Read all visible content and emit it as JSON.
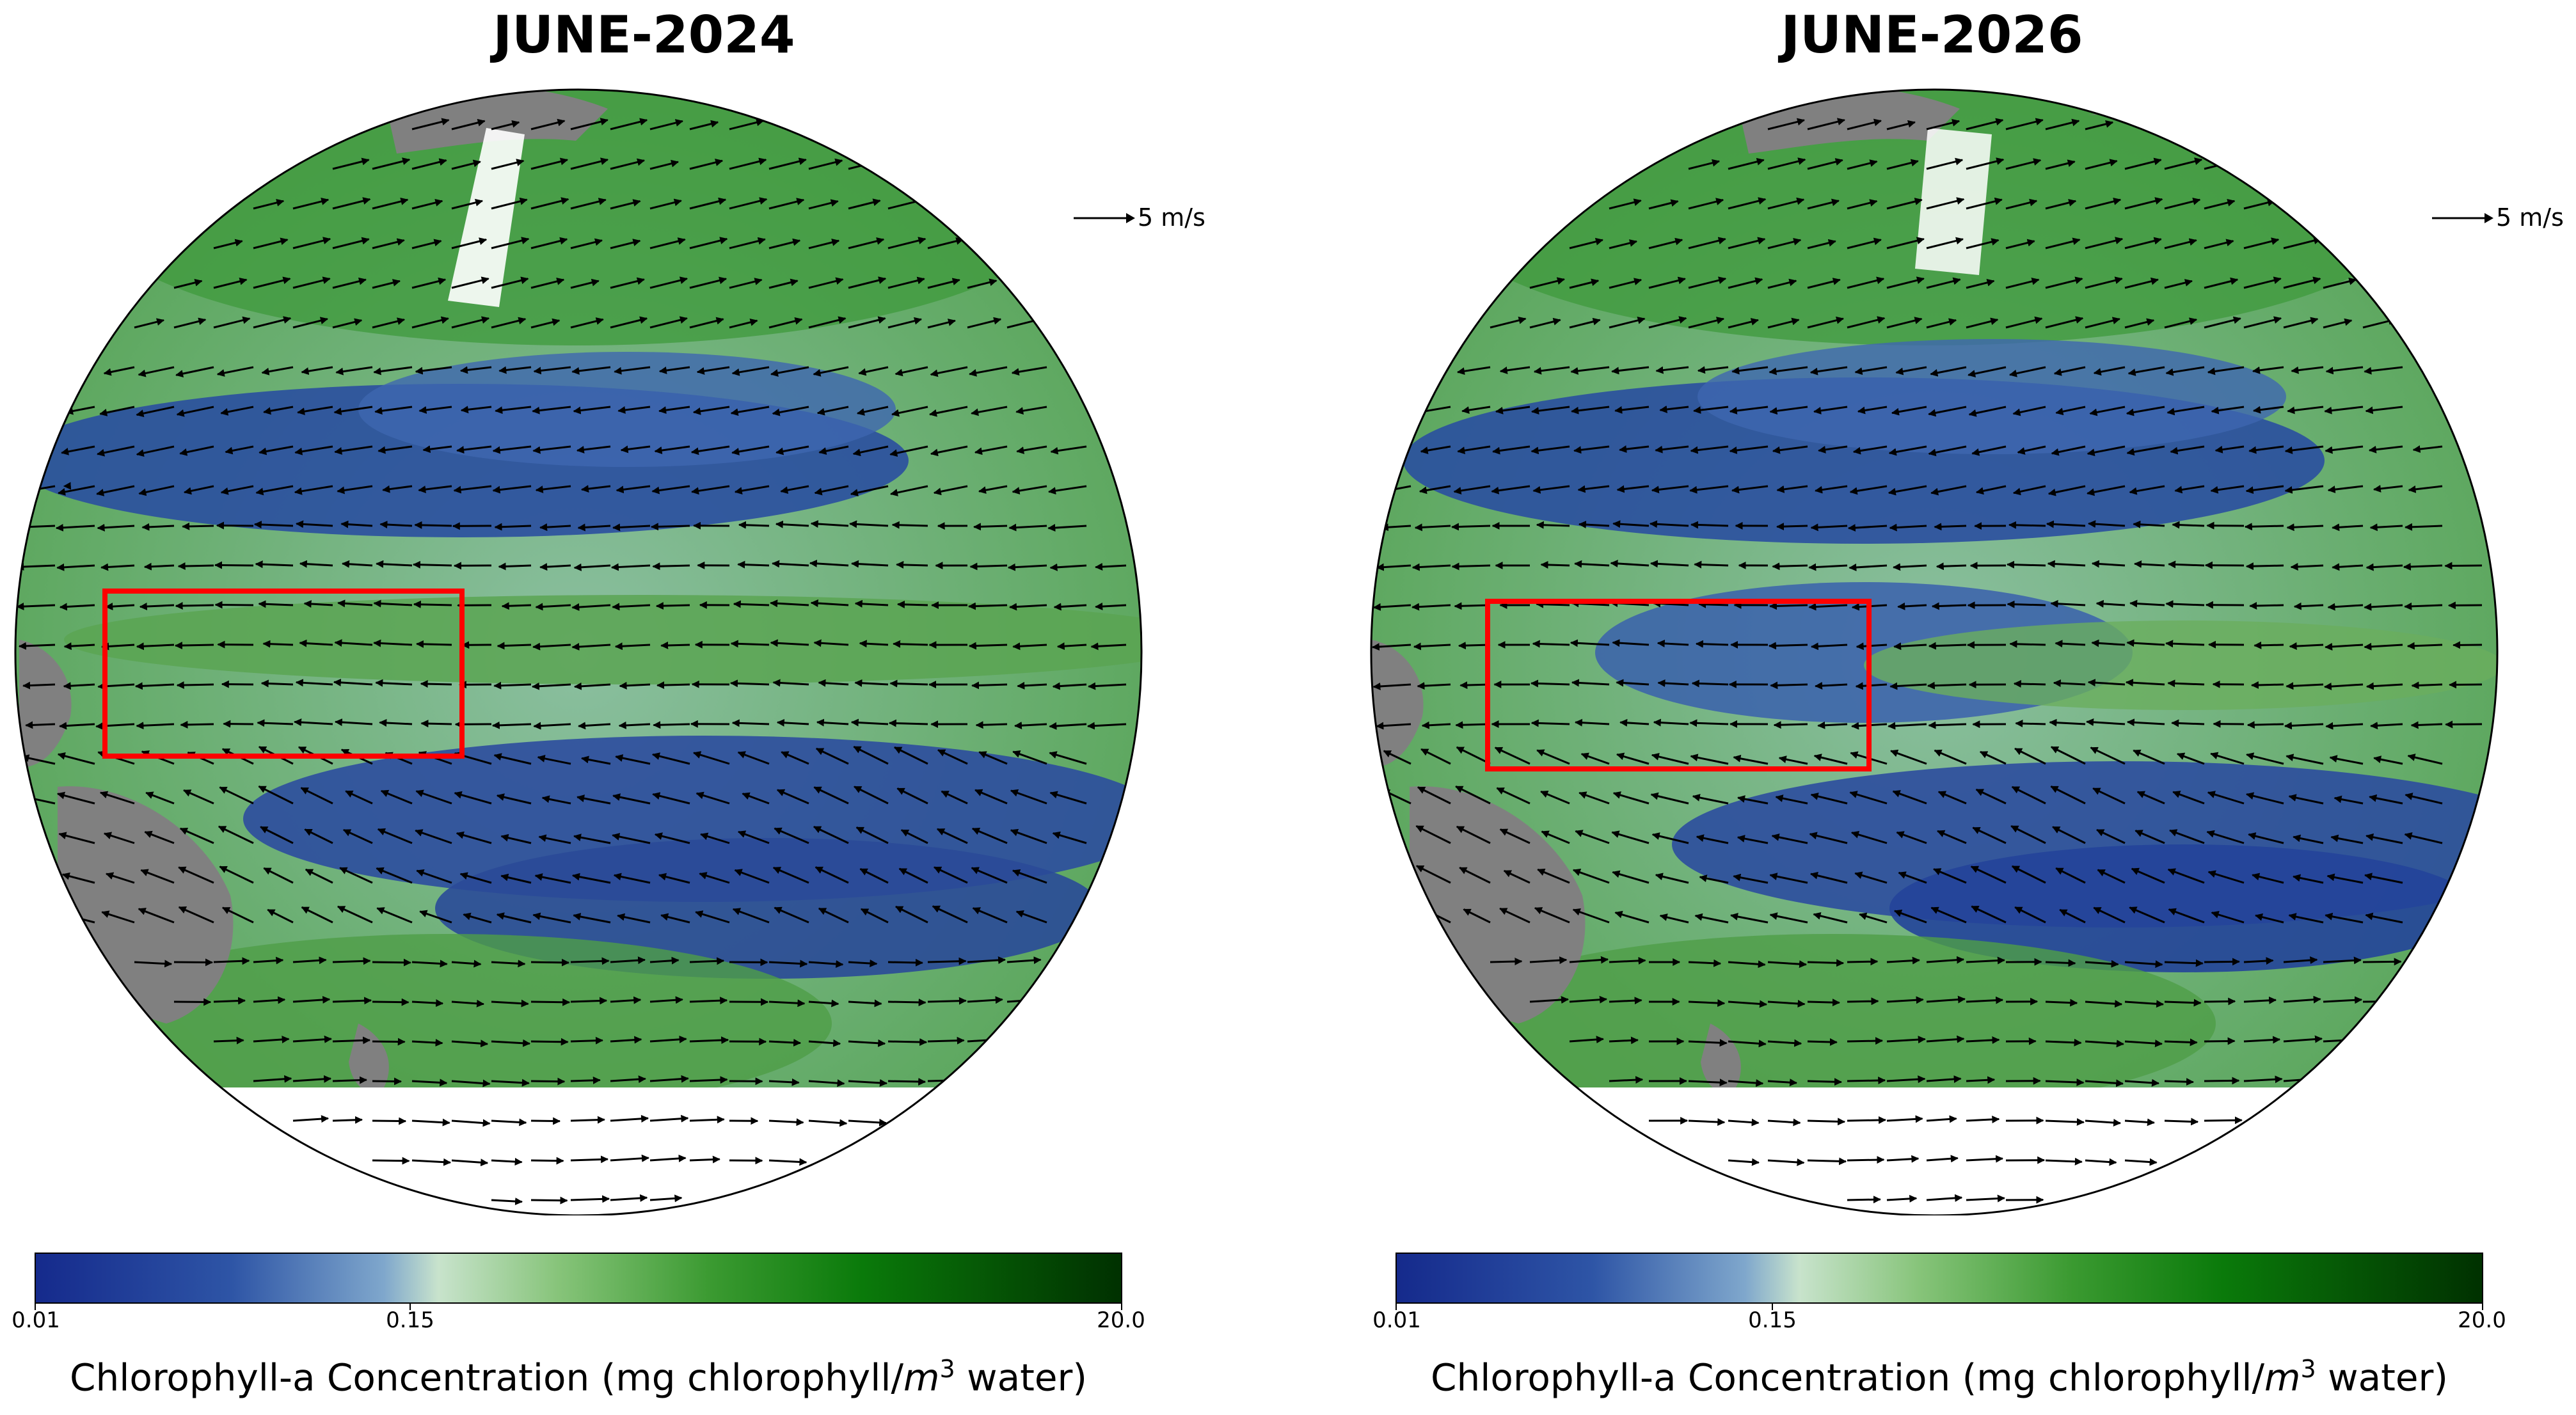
{
  "maps": [
    {
      "title": "JUNE-2024",
      "scale": {
        "label": "5 m/s"
      },
      "colorbar": {
        "ticks": [
          "0.01",
          "0.15",
          "20.0"
        ],
        "label_prefix": "Chlorophyll-a Concentration (mg chlorophyll/",
        "label_unit_base": "m",
        "label_unit_exp": "3",
        "label_suffix": " water)"
      },
      "highlight_box": "red rectangle over western tropical Pacific"
    },
    {
      "title": "JUNE-2026",
      "scale": {
        "label": "5 m/s"
      },
      "colorbar": {
        "ticks": [
          "0.01",
          "0.15",
          "20.0"
        ],
        "label_prefix": "Chlorophyll-a Concentration (mg chlorophyll/",
        "label_unit_base": "m",
        "label_unit_exp": "3",
        "label_suffix": " water)"
      },
      "highlight_box": "red rectangle over western tropical Pacific"
    }
  ],
  "colors": {
    "land": "#808080",
    "ocean_low": "#142a8c",
    "ocean_mid": "#b9dcc1",
    "ocean_high": "#002b00",
    "highlight": "#ff0000",
    "vectors": "#000000"
  },
  "icons": [
    "arrow-icon"
  ]
}
